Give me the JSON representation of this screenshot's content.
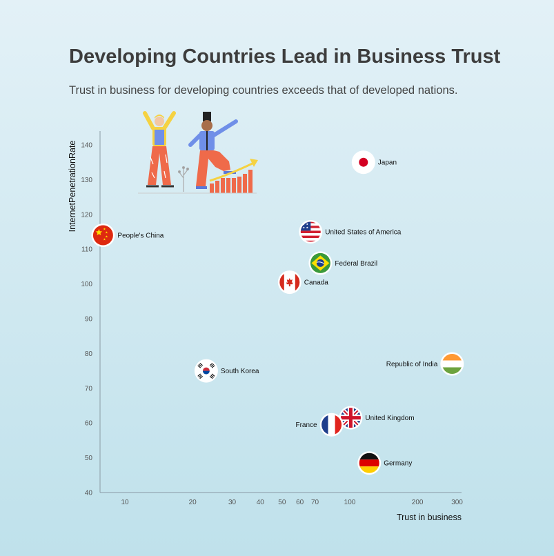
{
  "title": "Developing Countries Lead in Business Trust",
  "subtitle": "Trust in business for developing countries exceeds that of developed nations.",
  "chart_data": {
    "type": "scatter",
    "xlabel": "Trust in business",
    "ylabel": "InternetPenetrationRate",
    "x_scale": "log",
    "xlim": [
      7,
      300
    ],
    "ylim": [
      40,
      145
    ],
    "x_ticks": [
      10,
      20,
      30,
      40,
      50,
      60,
      70,
      100,
      200,
      300
    ],
    "y_ticks": [
      40,
      50,
      60,
      70,
      80,
      90,
      100,
      110,
      120,
      130,
      140
    ],
    "grid": false,
    "points": [
      {
        "label": "People's China",
        "x": 8,
        "y": 114,
        "flag": "china-flag-icon",
        "label_side": "right"
      },
      {
        "label": "Japan",
        "x": 115,
        "y": 135,
        "flag": "japan-flag-icon",
        "label_side": "right"
      },
      {
        "label": "United States of America",
        "x": 67,
        "y": 115,
        "flag": "usa-flag-icon",
        "label_side": "right"
      },
      {
        "label": "Federal Brazil",
        "x": 74,
        "y": 106,
        "flag": "brazil-flag-icon",
        "label_side": "right"
      },
      {
        "label": "Canada",
        "x": 54,
        "y": 100.5,
        "flag": "canada-flag-icon",
        "label_side": "right"
      },
      {
        "label": "Republic of India",
        "x": 285,
        "y": 77,
        "flag": "india-flag-icon",
        "label_side": "left"
      },
      {
        "label": "South Korea",
        "x": 23,
        "y": 75,
        "flag": "south-korea-flag-icon",
        "label_side": "right"
      },
      {
        "label": "United Kingdom",
        "x": 101,
        "y": 61.5,
        "flag": "uk-flag-icon",
        "label_side": "right"
      },
      {
        "label": "France",
        "x": 83,
        "y": 59.5,
        "flag": "france-flag-icon",
        "label_side": "left"
      },
      {
        "label": "Germany",
        "x": 122,
        "y": 48.5,
        "flag": "germany-flag-icon",
        "label_side": "right"
      }
    ],
    "colors": {
      "axis": "#8a9aa3",
      "point_border": "#ffffff"
    }
  },
  "illustration": {
    "name": "business-growth-illustration-icon"
  }
}
